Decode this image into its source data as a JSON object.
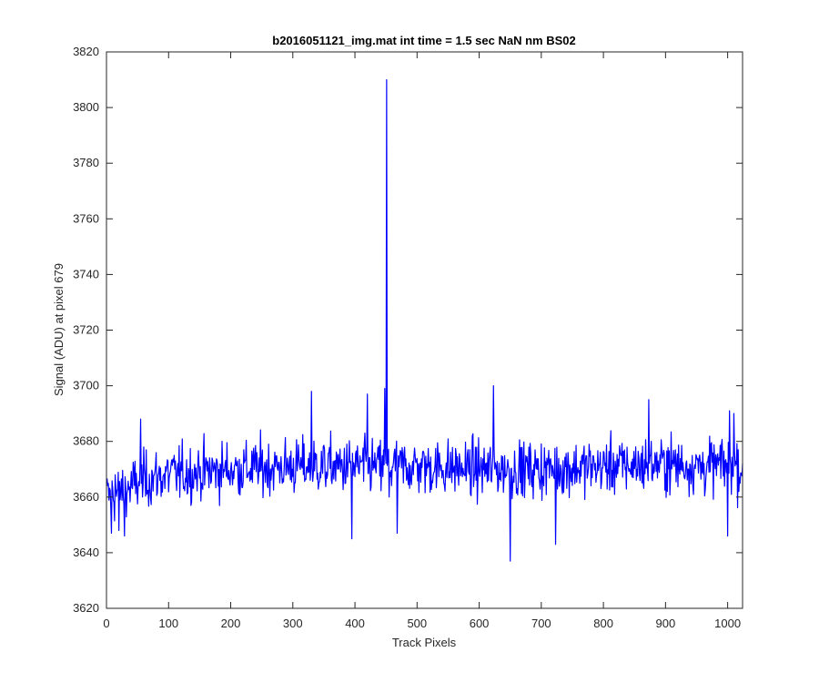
{
  "chart_data": {
    "type": "line",
    "title": "b2016051121_img.mat int time = 1.5 sec  NaN nm BS02",
    "xlabel": "Track Pixels",
    "ylabel": "Signal (ADU) at pixel 679",
    "xlim": [
      0,
      1024
    ],
    "ylim": [
      3620,
      3820
    ],
    "x_ticks": [
      0,
      100,
      200,
      300,
      400,
      500,
      600,
      700,
      800,
      900,
      1000
    ],
    "y_ticks": [
      3620,
      3640,
      3660,
      3680,
      3700,
      3720,
      3740,
      3760,
      3780,
      3800,
      3820
    ],
    "grid": false,
    "line_color": "#0000ff",
    "series": [
      {
        "x_start": 1,
        "x_step": 1,
        "baseline_values": [
          [
            0,
            3660
          ],
          [
            25,
            3662
          ],
          [
            60,
            3666
          ],
          [
            100,
            3668
          ],
          [
            200,
            3670
          ],
          [
            300,
            3671
          ],
          [
            400,
            3671
          ],
          [
            500,
            3671
          ],
          [
            600,
            3670
          ],
          [
            700,
            3670
          ],
          [
            800,
            3671
          ],
          [
            900,
            3672
          ],
          [
            960,
            3671
          ],
          [
            1024,
            3672
          ]
        ],
        "noise_amplitude": 7,
        "notable_points": [
          {
            "x": 2,
            "y": 3664
          },
          {
            "x": 8,
            "y": 3647
          },
          {
            "x": 14,
            "y": 3668
          },
          {
            "x": 20,
            "y": 3648
          },
          {
            "x": 29,
            "y": 3646
          },
          {
            "x": 55,
            "y": 3688
          },
          {
            "x": 330,
            "y": 3698
          },
          {
            "x": 395,
            "y": 3645
          },
          {
            "x": 420,
            "y": 3697
          },
          {
            "x": 448,
            "y": 3699
          },
          {
            "x": 451,
            "y": 3810
          },
          {
            "x": 455,
            "y": 3660
          },
          {
            "x": 468,
            "y": 3647
          },
          {
            "x": 623,
            "y": 3700
          },
          {
            "x": 650,
            "y": 3637
          },
          {
            "x": 723,
            "y": 3643
          },
          {
            "x": 873,
            "y": 3695
          },
          {
            "x": 1000,
            "y": 3646
          },
          {
            "x": 1003,
            "y": 3691
          },
          {
            "x": 1010,
            "y": 3690
          },
          {
            "x": 1018,
            "y": 3662
          },
          {
            "x": 1024,
            "y": 3672
          }
        ]
      }
    ]
  }
}
